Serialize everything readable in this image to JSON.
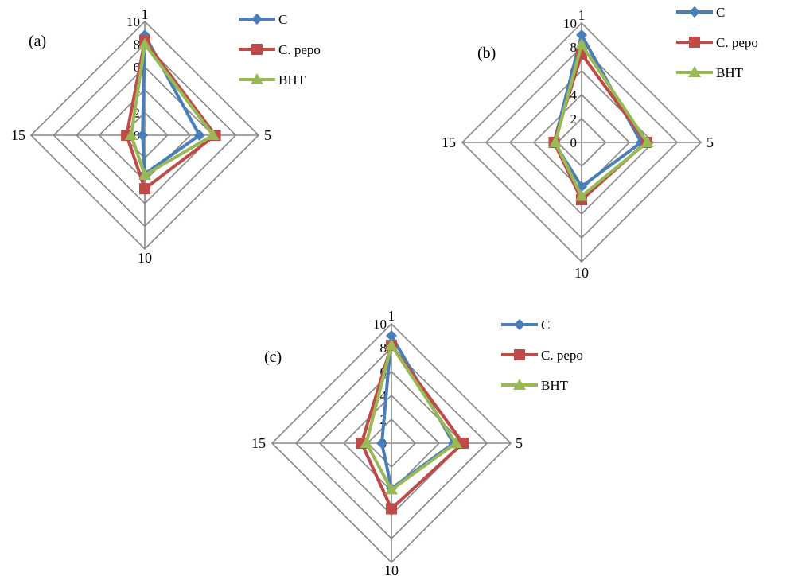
{
  "chart_data": [
    {
      "type": "radar",
      "panel_label": "(a)",
      "axes": [
        "1",
        "5",
        "10",
        "15"
      ],
      "rlim": [
        0,
        10
      ],
      "ticks": [
        "0",
        "2",
        "4",
        "6",
        "8",
        "10"
      ],
      "legend_position": "right",
      "series": [
        {
          "name": "C",
          "values": [
            8.8,
            4.8,
            3.4,
            0.2
          ],
          "color": "#4a7ebb",
          "marker": "diamond"
        },
        {
          "name": "C. pepo",
          "values": [
            8.3,
            6.2,
            4.7,
            1.6
          ],
          "color": "#be4b48",
          "marker": "square"
        },
        {
          "name": "BHT",
          "values": [
            8.0,
            6.0,
            3.5,
            1.2
          ],
          "color": "#98b954",
          "marker": "triangle"
        }
      ]
    },
    {
      "type": "radar",
      "panel_label": "(b)",
      "axes": [
        "1",
        "5",
        "10",
        "15"
      ],
      "rlim": [
        0,
        10
      ],
      "ticks": [
        "0",
        "2",
        "4",
        "6",
        "8",
        "10"
      ],
      "legend_position": "right",
      "series": [
        {
          "name": "C",
          "values": [
            9.0,
            5.0,
            3.7,
            2.3
          ],
          "color": "#4a7ebb",
          "marker": "diamond"
        },
        {
          "name": "C. pepo",
          "values": [
            7.4,
            5.4,
            4.8,
            2.3
          ],
          "color": "#be4b48",
          "marker": "square"
        },
        {
          "name": "BHT",
          "values": [
            8.2,
            5.5,
            4.5,
            2.2
          ],
          "color": "#98b954",
          "marker": "triangle"
        }
      ]
    },
    {
      "type": "radar",
      "panel_label": "(c)",
      "axes": [
        "1",
        "5",
        "10",
        "15"
      ],
      "rlim": [
        0,
        10
      ],
      "ticks": [
        "0",
        "2",
        "4",
        "6",
        "8",
        "10"
      ],
      "legend_position": "right",
      "series": [
        {
          "name": "C",
          "values": [
            9.0,
            5.2,
            3.8,
            0.8
          ],
          "color": "#4a7ebb",
          "marker": "diamond"
        },
        {
          "name": "C. pepo",
          "values": [
            8.2,
            6.0,
            5.5,
            2.5
          ],
          "color": "#be4b48",
          "marker": "square"
        },
        {
          "name": "BHT",
          "values": [
            8.2,
            5.4,
            3.9,
            2.1
          ],
          "color": "#98b954",
          "marker": "triangle"
        }
      ]
    }
  ]
}
